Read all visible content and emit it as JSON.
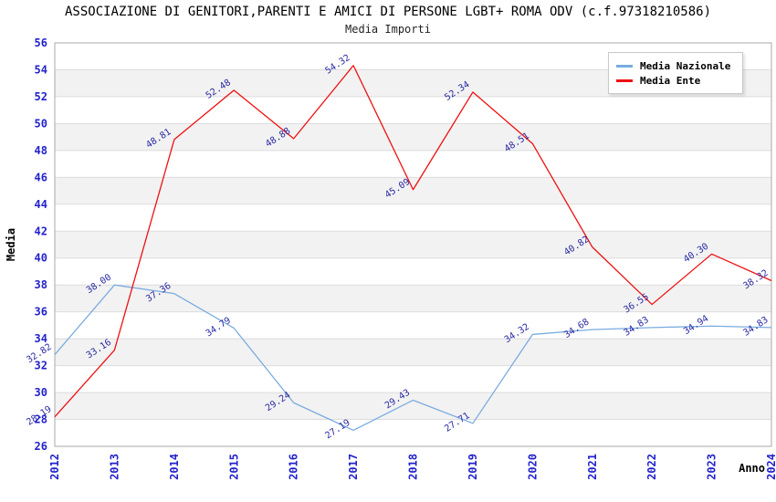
{
  "header": {
    "title": "ASSOCIAZIONE DI GENITORI,PARENTI E AMICI DI PERSONE LGBT+ ROMA ODV (c.f.97318210586)",
    "subtitle": "Media Importi"
  },
  "legend": {
    "items": [
      {
        "label": "Media Nazionale",
        "color": "#7aace0"
      },
      {
        "label": "Media Ente",
        "color": "#ee1111"
      }
    ]
  },
  "axes": {
    "xlabel": "Anno",
    "ylabel": "Media"
  },
  "chart_data": {
    "type": "line",
    "title": "ASSOCIAZIONE DI GENITORI,PARENTI E AMICI DI PERSONE LGBT+ ROMA ODV (c.f.97318210586)",
    "subtitle": "Media Importi",
    "xlabel": "Anno",
    "ylabel": "Media",
    "x": [
      "2012",
      "2013",
      "2014",
      "2015",
      "2016",
      "2017",
      "2018",
      "2019",
      "2020",
      "2021",
      "2022",
      "2023",
      "2024"
    ],
    "series": [
      {
        "name": "Media Nazionale",
        "color": "#7aace0",
        "values": [
          32.82,
          38.0,
          37.36,
          34.79,
          29.24,
          27.19,
          29.43,
          27.71,
          34.32,
          34.68,
          34.83,
          34.94,
          34.83
        ]
      },
      {
        "name": "Media Ente",
        "color": "#ee1111",
        "values": [
          28.19,
          33.16,
          48.81,
          52.48,
          48.88,
          54.32,
          45.09,
          52.34,
          48.51,
          40.82,
          36.55,
          40.3,
          38.32
        ]
      }
    ],
    "ylim": [
      26,
      56
    ],
    "ytick_step": 2,
    "grid": "horizontal-bands",
    "band_colors": [
      "#ffffff",
      "#f2f2f2"
    ],
    "gridline_color": "#dcdcdc",
    "plot_border_color": "#aaaaaa",
    "tick_label_color": "#2222cc",
    "point_label_color": "#2929a3",
    "legend_position": "top-right"
  }
}
